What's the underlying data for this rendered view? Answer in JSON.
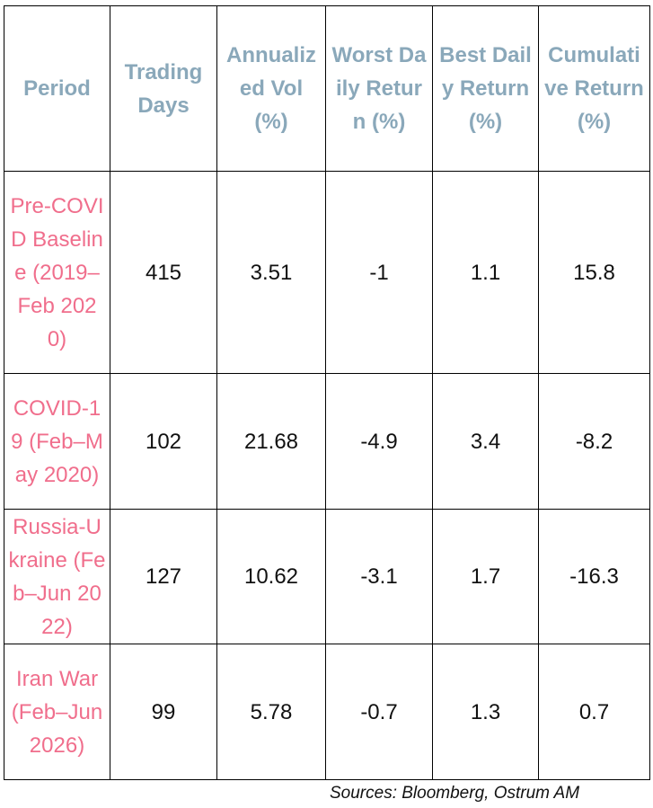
{
  "table": {
    "headers": [
      "Period",
      "Trading Days",
      "Annualized Vol (%)",
      "Worst Daily Return (%)",
      "Best Daily Return (%)",
      "Cumulative Return (%)"
    ],
    "rows": [
      {
        "period": "Pre-COVID Baseline (2019–Feb 2020)",
        "trading_days": "415",
        "annualized_vol": "3.51",
        "worst_daily": "-1",
        "best_daily": "1.1",
        "cumulative": "15.8"
      },
      {
        "period": "COVID-19 (Feb–May 2020)",
        "trading_days": "102",
        "annualized_vol": "21.68",
        "worst_daily": "-4.9",
        "best_daily": "3.4",
        "cumulative": "-8.2"
      },
      {
        "period": "Russia-Ukraine (Feb–Jun 2022)",
        "trading_days": "127",
        "annualized_vol": "10.62",
        "worst_daily": "-3.1",
        "best_daily": "1.7",
        "cumulative": "-16.3"
      },
      {
        "period": "Iran War (Feb–Jun 2026)",
        "trading_days": "99",
        "annualized_vol": "5.78",
        "worst_daily": "-0.7",
        "best_daily": "1.3",
        "cumulative": "0.7"
      }
    ]
  },
  "footer": {
    "source": "Sources: Bloomberg, Ostrum AM"
  },
  "colors": {
    "header_text": "#8aa8ba",
    "period_text": "#f06e8c",
    "value_text": "#111111",
    "border": "#000000"
  }
}
